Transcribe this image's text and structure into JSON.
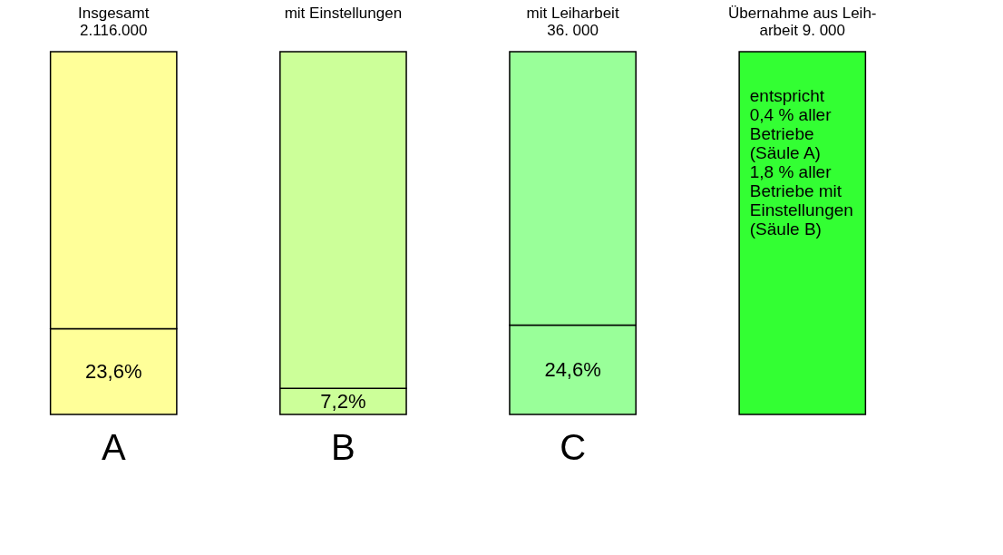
{
  "chart_data": {
    "type": "bar",
    "stacked": true,
    "categories": [
      "Insgesamt\n2.116.000",
      "mit Einstellungen",
      "mit Leiharbeit\n36. 000",
      "Übernahme aus Leih-\narbeit 9. 000"
    ],
    "series": [
      {
        "values": [
          23.6,
          7.2,
          24.6,
          100
        ],
        "value_labels": [
          "23,6%",
          "7,2%",
          "24,6%",
          null
        ],
        "colors": [
          "#ffff99",
          "#ccff99",
          "#99ff99",
          "#33ff33"
        ]
      },
      {
        "values": [
          76.4,
          92.8,
          75.4,
          null
        ],
        "colors": [
          "#ffff99",
          "#ccff99",
          "#99ff99",
          "#33ff33"
        ]
      }
    ],
    "annotations": [
      "A",
      "B",
      "C",
      "entspricht\n\n0,4 % aller\nBetriebe\n(Säule A)\n\n\n\n1,8 % aller\nBetriebe mit\nEinstellungen\n(Säule B)"
    ]
  }
}
